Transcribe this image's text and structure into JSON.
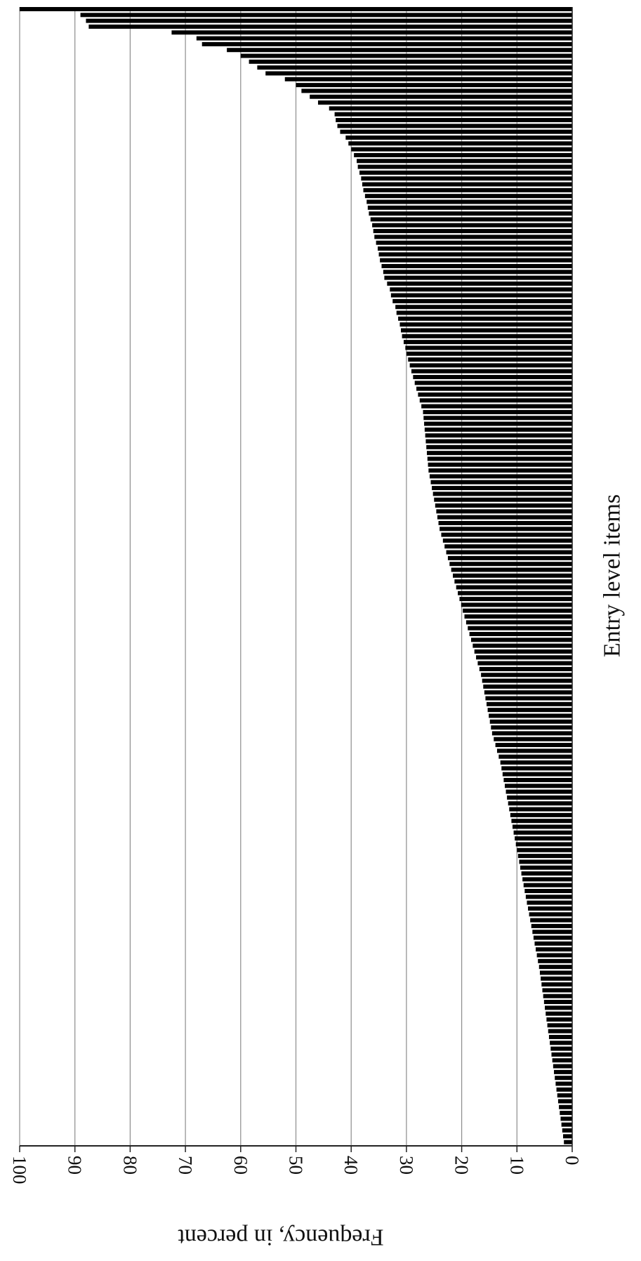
{
  "chart_data": {
    "type": "bar",
    "orientation": "horizontal",
    "rotation": "rotated 90 degrees clockwise",
    "xlabel": "Entry level items",
    "ylabel": "Frequency, in percent",
    "ylim": [
      0,
      100
    ],
    "y_ticks": [
      "0",
      "10",
      "20",
      "30",
      "40",
      "50",
      "60",
      "70",
      "80",
      "90",
      "100"
    ],
    "grid": true,
    "sorted": "descending",
    "values": [
      100,
      89,
      88,
      87.5,
      72.5,
      68,
      67,
      62.5,
      60,
      58.5,
      57,
      55.5,
      52,
      50,
      49,
      47.5,
      46,
      44,
      43,
      42.8,
      42.5,
      42,
      41,
      40.5,
      40,
      39.5,
      39,
      38.8,
      38.5,
      38.2,
      38,
      37.8,
      37.5,
      37.2,
      37,
      36.8,
      36.5,
      36.2,
      36,
      35.8,
      35.5,
      35.2,
      35,
      34.8,
      34.5,
      34.2,
      34,
      33.5,
      33,
      32.8,
      32.5,
      32,
      31.8,
      31.5,
      31.2,
      31,
      30.8,
      30.5,
      30.2,
      30,
      29.7,
      29.4,
      29.1,
      28.8,
      28.5,
      28.2,
      27.9,
      27.6,
      27.3,
      27,
      26.9,
      26.8,
      26.7,
      26.6,
      26.5,
      26.4,
      26.3,
      26.2,
      26.1,
      26,
      25.8,
      25.6,
      25.4,
      25.2,
      25,
      24.8,
      24.6,
      24.4,
      24.2,
      24,
      23.7,
      23.4,
      23.1,
      22.8,
      22.5,
      22.2,
      21.9,
      21.6,
      21.3,
      21,
      20.7,
      20.4,
      20.1,
      19.8,
      19.5,
      19.2,
      18.9,
      18.6,
      18.3,
      18,
      17.7,
      17.4,
      17.1,
      16.8,
      16.5,
      16.3,
      16.1,
      15.9,
      15.7,
      15.5,
      15.3,
      15.1,
      14.9,
      14.7,
      14.5,
      14.2,
      13.9,
      13.6,
      13.3,
      13,
      12.8,
      12.6,
      12.4,
      12.2,
      12,
      11.8,
      11.6,
      11.4,
      11.2,
      11,
      10.8,
      10.6,
      10.4,
      10.2,
      10,
      9.8,
      9.6,
      9.4,
      9.2,
      9,
      8.8,
      8.6,
      8.4,
      8.2,
      8,
      7.8,
      7.6,
      7.4,
      7.2,
      7,
      6.8,
      6.6,
      6.4,
      6.2,
      6,
      5.85,
      5.7,
      5.55,
      5.4,
      5.25,
      5.1,
      4.95,
      4.8,
      4.65,
      4.5,
      4.35,
      4.2,
      4.05,
      3.9,
      3.75,
      3.6,
      3.45,
      3.3,
      3.15,
      3,
      2.85,
      2.7,
      2.55,
      2.4,
      2.25,
      2.1,
      1.95,
      1.8,
      1.65,
      1.5
    ],
    "colors": {
      "bar": "#000000",
      "grid": "#8c8c8c",
      "axis": "#222222",
      "text": "#111111"
    }
  }
}
